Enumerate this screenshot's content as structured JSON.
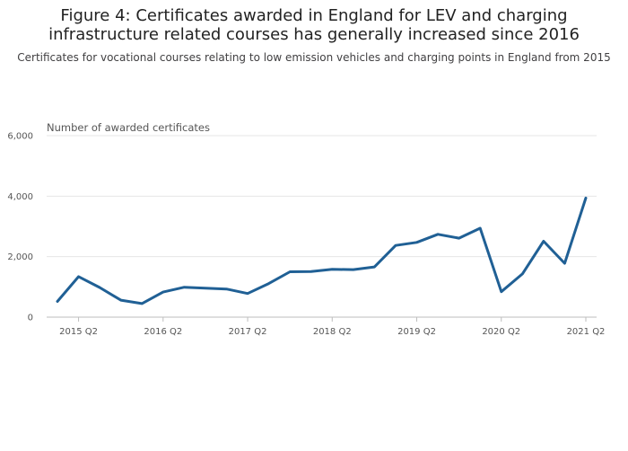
{
  "header": {
    "title_line1": "Figure 4: Certificates awarded in England for LEV and charging",
    "title_line2": "infrastructure related courses has generally increased since 2016",
    "subtitle": "Certificates for vocational courses relating to low emission vehicles and charging points in England from 2015"
  },
  "colors": {
    "line": "#206095",
    "grid": "#e6e6e6",
    "axis": "#bebebe"
  },
  "chart_data": {
    "type": "line",
    "title": "Figure 4: Certificates awarded in England for LEV and charging infrastructure related courses has generally increased since 2016",
    "subtitle": "Certificates for vocational courses relating to low emission vehicles and charging points in England from 2015",
    "ylabel": "Number of awarded certificates",
    "ylim": [
      0,
      6000
    ],
    "y_ticks": [
      0,
      2000,
      4000,
      6000
    ],
    "y_tick_labels": [
      "0",
      "2,000",
      "4,000",
      "6,000"
    ],
    "x_ticks": [
      "2015 Q2",
      "2016 Q2",
      "2017 Q2",
      "2018 Q2",
      "2019 Q2",
      "2020 Q2",
      "2021 Q2"
    ],
    "grid": true,
    "series": [
      {
        "x": [
          "2015 Q1",
          "2015 Q2",
          "2015 Q3",
          "2015 Q4",
          "2016 Q1",
          "2016 Q2",
          "2016 Q3",
          "2016 Q4",
          "2017 Q1",
          "2017 Q2",
          "2017 Q3",
          "2017 Q4",
          "2018 Q1",
          "2018 Q2",
          "2018 Q3",
          "2018 Q4",
          "2019 Q1",
          "2019 Q2",
          "2019 Q3",
          "2019 Q4",
          "2020 Q1",
          "2020 Q2",
          "2020 Q3",
          "2020 Q4",
          "2021 Q1",
          "2021 Q2"
        ],
        "values": [
          520,
          1340,
          980,
          560,
          450,
          830,
          990,
          960,
          930,
          780,
          1110,
          1500,
          1510,
          1580,
          1570,
          1660,
          2370,
          2470,
          2740,
          2610,
          2940,
          840,
          1430,
          2510,
          1780,
          3940
        ]
      }
    ]
  }
}
